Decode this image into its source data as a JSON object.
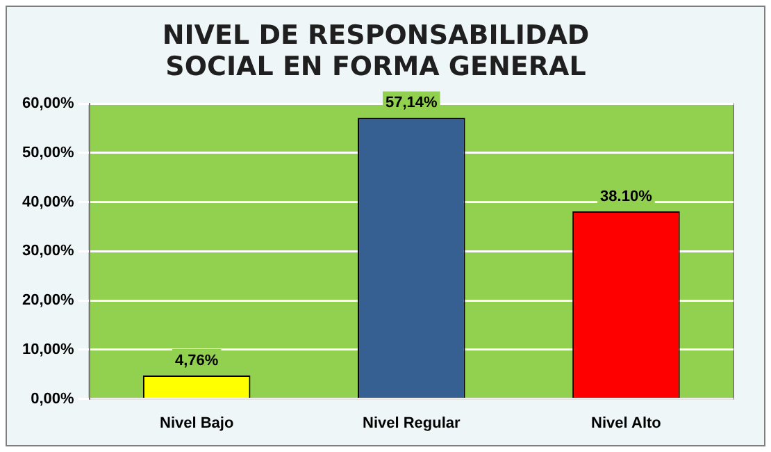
{
  "chart_data": {
    "type": "bar",
    "title": "NIVEL DE RESPONSABILIDAD SOCIAL EN FORMA GENERAL",
    "categories": [
      "Nivel Bajo",
      "Nivel Regular",
      "Nivel Alto"
    ],
    "values": [
      4.76,
      57.14,
      38.1
    ],
    "colors": [
      "#ffff00",
      "#376092",
      "#ff0000"
    ],
    "value_labels": [
      "4,76%",
      "57,14%",
      "38.10%"
    ],
    "ylim": [
      0,
      60
    ],
    "yticks": [
      {
        "value": 0,
        "label": "0,00%"
      },
      {
        "value": 10,
        "label": "10,00%"
      },
      {
        "value": 20,
        "label": "20,00%"
      },
      {
        "value": 30,
        "label": "30,00%"
      },
      {
        "value": 40,
        "label": "40,00%"
      },
      {
        "value": 50,
        "label": "50,00%"
      },
      {
        "value": 60,
        "label": "60,00%"
      }
    ],
    "grid": "y",
    "legend": false
  }
}
